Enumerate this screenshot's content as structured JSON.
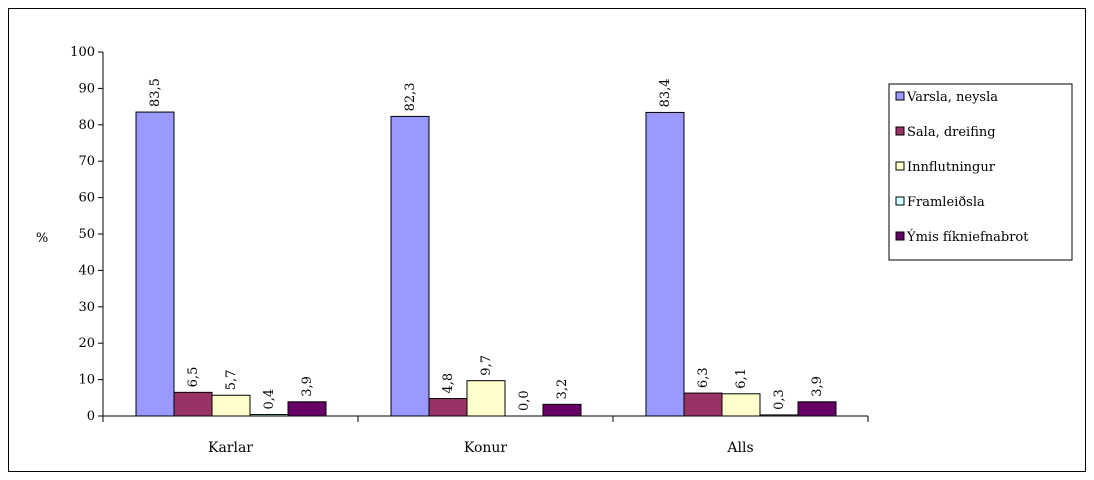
{
  "chart_data": {
    "type": "bar",
    "title": "",
    "xlabel": "",
    "ylabel": "%",
    "ylim": [
      0,
      100
    ],
    "yticks": [
      0,
      10,
      20,
      30,
      40,
      50,
      60,
      70,
      80,
      90,
      100
    ],
    "grid": false,
    "legend_position": "right",
    "categories": [
      "Karlar",
      "Konur",
      "Alls"
    ],
    "series": [
      {
        "name": "Varsla, neysla",
        "values": [
          83.5,
          82.3,
          83.4
        ],
        "labels": [
          "83,5",
          "82,3",
          "83,4"
        ],
        "color": "#9999ff"
      },
      {
        "name": "Sala, dreifing",
        "values": [
          6.5,
          4.8,
          6.3
        ],
        "labels": [
          "6,5",
          "4,8",
          "6,3"
        ],
        "color": "#993366"
      },
      {
        "name": "Innflutningur",
        "values": [
          5.7,
          9.7,
          6.1
        ],
        "labels": [
          "5,7",
          "9,7",
          "6,1"
        ],
        "color": "#ffffcc"
      },
      {
        "name": "Framleiðsla",
        "values": [
          0.4,
          0.0,
          0.3
        ],
        "labels": [
          "0,4",
          "0,0",
          "0,3"
        ],
        "color": "#ccffff"
      },
      {
        "name": "Ýmis fíkniefnabrot",
        "values": [
          3.9,
          3.2,
          3.9
        ],
        "labels": [
          "3,9",
          "3,2",
          "3,9"
        ],
        "color": "#660066"
      }
    ]
  }
}
